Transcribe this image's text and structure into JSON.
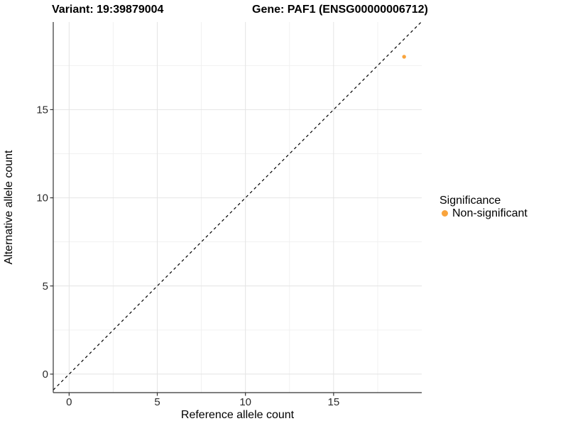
{
  "chart_data": {
    "type": "scatter",
    "titles": {
      "variant": "Variant: 19:39879004",
      "gene": "Gene: PAF1 (ENSG00000006712)"
    },
    "xlabel": "Reference allele count",
    "ylabel": "Alternative allele count",
    "xlim": [
      -0.9,
      20.0
    ],
    "ylim": [
      -1.05,
      19.97
    ],
    "x_ticks": [
      0,
      5,
      10,
      15
    ],
    "y_ticks": [
      0,
      5,
      10,
      15
    ],
    "x_minor_ticks": [
      2.5,
      7.5,
      12.5,
      17.5
    ],
    "y_minor_ticks": [
      2.5,
      7.5,
      12.5,
      17.5
    ],
    "grid": true,
    "points": [
      {
        "x": 19,
        "y": 18,
        "series": "Non-significant"
      }
    ],
    "identity_line": {
      "slope": 1,
      "intercept": 0,
      "style": "dashed"
    },
    "legend": {
      "position": "right",
      "title": "Significance",
      "items": [
        {
          "label": "Non-significant",
          "color": "#F9A43C",
          "marker": "circle-icon"
        }
      ]
    },
    "colors": {
      "point": "#F9A43C",
      "grid_major": "#E4E4E4",
      "grid_minor": "#F1F1F1",
      "axis_line": "#333333",
      "tick_mark": "#333333",
      "tick_label": "#2B2B2B",
      "identity_line": "#000000",
      "background": "#FFFFFF"
    }
  }
}
